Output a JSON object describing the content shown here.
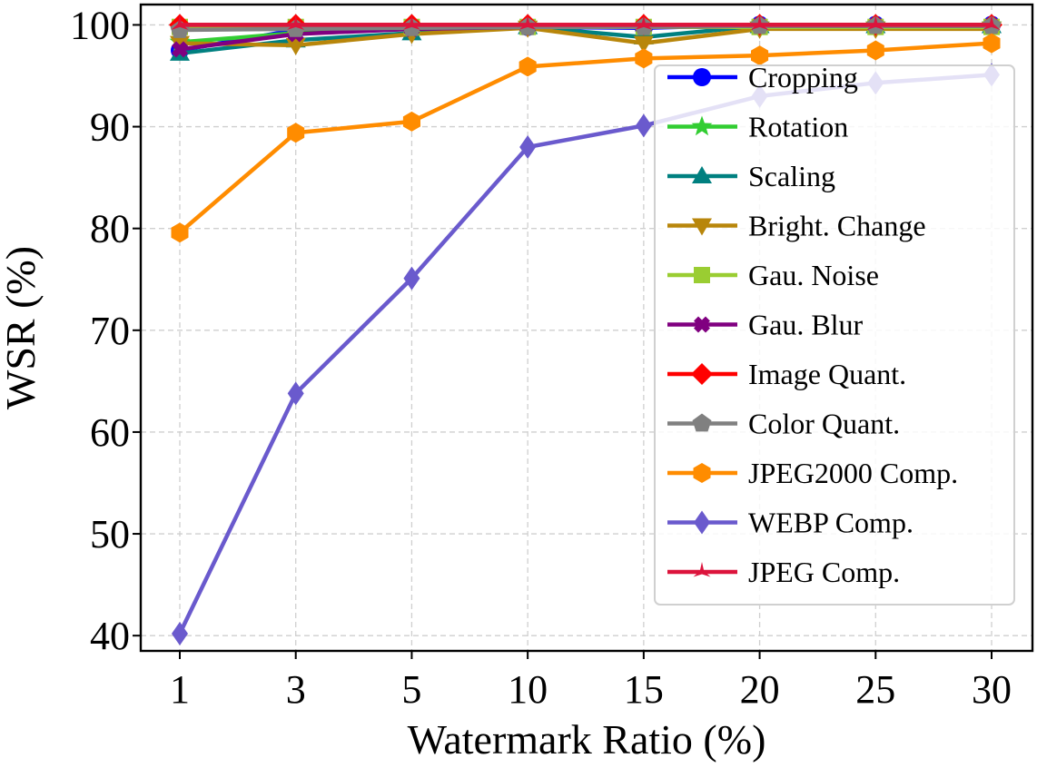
{
  "chart_data": {
    "type": "line",
    "title": "",
    "xlabel": "Watermark Ratio (%)",
    "ylabel": "WSR (%)",
    "categories": [
      "1",
      "3",
      "5",
      "10",
      "15",
      "20",
      "25",
      "30"
    ],
    "yticks": [
      "40",
      "50",
      "60",
      "70",
      "80",
      "90",
      "100"
    ],
    "ylim": [
      38.5,
      102
    ],
    "grid": true,
    "legend_position": "right",
    "series": [
      {
        "name": "Cropping",
        "color": "#0000ff",
        "marker": "circle",
        "values": [
          97.5,
          99.5,
          99.8,
          99.8,
          99.7,
          100,
          100,
          100
        ]
      },
      {
        "name": "Rotation",
        "color": "#32cd32",
        "marker": "star",
        "values": [
          98.3,
          99.2,
          99.6,
          99.9,
          99.8,
          100,
          100,
          100
        ]
      },
      {
        "name": "Scaling",
        "color": "#008080",
        "marker": "triangle-up",
        "values": [
          97.2,
          98.5,
          99.2,
          99.8,
          98.8,
          99.9,
          99.9,
          99.9
        ]
      },
      {
        "name": "Bright. Change",
        "color": "#b8860b",
        "marker": "triangle-down",
        "values": [
          98.2,
          98.0,
          99.1,
          99.7,
          98.2,
          99.6,
          99.6,
          99.6
        ]
      },
      {
        "name": "Gau. Noise",
        "color": "#9acd32",
        "marker": "square",
        "values": [
          99.8,
          99.8,
          99.8,
          99.8,
          99.8,
          99.8,
          99.8,
          99.8
        ]
      },
      {
        "name": "Gau. Blur",
        "color": "#800080",
        "marker": "x",
        "values": [
          97.6,
          99.1,
          99.6,
          99.8,
          99.8,
          99.9,
          99.9,
          99.9
        ]
      },
      {
        "name": "Image Quant.",
        "color": "#ff0000",
        "marker": "diamond",
        "values": [
          100,
          100,
          100,
          100,
          100,
          100,
          100,
          100
        ]
      },
      {
        "name": "Color Quant.",
        "color": "#808080",
        "marker": "pentagon",
        "values": [
          99.5,
          99.6,
          99.7,
          99.8,
          99.8,
          99.9,
          99.9,
          99.9
        ]
      },
      {
        "name": "JPEG2000 Comp.",
        "color": "#ff8c00",
        "marker": "hexagon",
        "values": [
          79.6,
          89.4,
          90.5,
          95.9,
          96.7,
          97.0,
          97.5,
          98.2
        ]
      },
      {
        "name": "WEBP Comp.",
        "color": "#6a5acd",
        "marker": "thin-diamond",
        "values": [
          40.2,
          63.8,
          75.1,
          88.0,
          90.1,
          93.0,
          94.3,
          95.1
        ]
      },
      {
        "name": "JPEG Comp.",
        "color": "#dc143c",
        "marker": "star-thin",
        "values": [
          100,
          100,
          100,
          100,
          100,
          100,
          100,
          100
        ]
      }
    ]
  }
}
